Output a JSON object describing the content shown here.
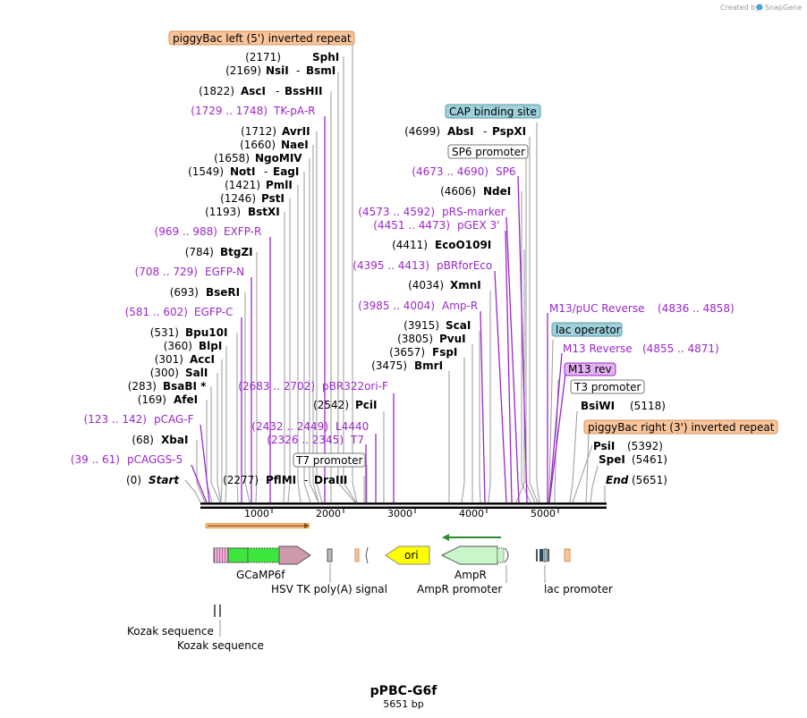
{
  "brand": {
    "created_by": "Created by",
    "app": "SnapGene"
  },
  "plasmid": {
    "name": "pPBC-G6f",
    "length": "5651 bp"
  },
  "colors": {
    "primer": "#9b27c9",
    "orange_box": "#f9c49a",
    "teal_box": "#9fd0dc",
    "violet_box": "#e2b2f2",
    "green_cds": "#3de63d",
    "pink_cds": "#cc9aaa",
    "ampr": "#c9f6c9",
    "ori": "#ffff00",
    "orange_arrow": "#e39b37",
    "green_arrow": "#2d8a2d"
  },
  "top_features": {
    "piggybac_left": "piggyBac left (5') inverted repeat",
    "cap_site": "CAP binding site",
    "sp6_promoter": "SP6 promoter",
    "lac_operator": "lac operator",
    "m13_rev_box": "M13 rev",
    "t3_promoter": "T3 promoter",
    "piggybac_right": "piggyBac right (3') inverted repeat",
    "t7_promoter": "T7 promoter"
  },
  "sites_left": [
    {
      "pos": "(2171)",
      "name": "SphI"
    },
    {
      "pos": "(2169)",
      "name": "NsiI",
      "name2": "BsmI"
    },
    {
      "pos": "(1822)",
      "name": "AscI",
      "name2": "BssHII"
    },
    {
      "pos": "(1712)",
      "name": "AvrII"
    },
    {
      "pos": "(1660)",
      "name": "NaeI"
    },
    {
      "pos": "(1658)",
      "name": "NgoMIV"
    },
    {
      "pos": "(1549)",
      "name": "NotI",
      "name2": "EagI"
    },
    {
      "pos": "(1421)",
      "name": "PmlI"
    },
    {
      "pos": "(1246)",
      "name": "PstI"
    },
    {
      "pos": "(1193)",
      "name": "BstXI"
    },
    {
      "pos": "(784)",
      "name": "BtgZI"
    },
    {
      "pos": "(693)",
      "name": "BseRI"
    },
    {
      "pos": "(531)",
      "name": "Bpu10I"
    },
    {
      "pos": "(360)",
      "name": "BlpI"
    },
    {
      "pos": "(301)",
      "name": "AccI"
    },
    {
      "pos": "(300)",
      "name": "SalI"
    },
    {
      "pos": "(283)",
      "name": "BsaBI *"
    },
    {
      "pos": "(169)",
      "name": "AfeI"
    },
    {
      "pos": "(68)",
      "name": "XbaI"
    },
    {
      "pos": "(0)",
      "name": "Start"
    },
    {
      "pos": "(2277)",
      "name": "PflMI",
      "name2": "DraIII"
    },
    {
      "pos": "(2542)",
      "name": "PciI"
    }
  ],
  "primers_left": [
    {
      "range": "(1729 .. 1748)",
      "name": "TK-pA-R"
    },
    {
      "range": "(969 .. 988)",
      "name": "EXFP-R"
    },
    {
      "range": "(708 .. 729)",
      "name": "EGFP-N"
    },
    {
      "range": "(581 .. 602)",
      "name": "EGFP-C"
    },
    {
      "range": "(123 .. 142)",
      "name": "pCAG-F"
    },
    {
      "range": "(39 .. 61)",
      "name": "pCAGGS-5"
    },
    {
      "range": "(2683 .. 2702)",
      "name": "pBR322ori-F"
    },
    {
      "range": "(2432 .. 2449)",
      "name": "L4440"
    },
    {
      "range": "(2326 .. 2345)",
      "name": "T7"
    }
  ],
  "sites_right": [
    {
      "pos": "(4699)",
      "name": "AbsI",
      "name2": "PspXI"
    },
    {
      "pos": "(4606)",
      "name": "NdeI"
    },
    {
      "pos": "(4411)",
      "name": "EcoO109I"
    },
    {
      "pos": "(4034)",
      "name": "XmnI"
    },
    {
      "pos": "(3915)",
      "name": "ScaI"
    },
    {
      "pos": "(3805)",
      "name": "PvuI"
    },
    {
      "pos": "(3657)",
      "name": "FspI"
    },
    {
      "pos": "(3475)",
      "name": "BmrI"
    },
    {
      "pos": "(5118)",
      "name": "BsiWI"
    },
    {
      "pos": "(5392)",
      "name": "PsiI"
    },
    {
      "pos": "(5461)",
      "name": "SpeI"
    },
    {
      "pos": "(5651)",
      "name": "End"
    }
  ],
  "primers_right": [
    {
      "range": "(4673 .. 4690)",
      "name": "SP6"
    },
    {
      "range": "(4573 .. 4592)",
      "name": "pRS-marker"
    },
    {
      "range": "(4451 .. 4473)",
      "name": "pGEX 3'"
    },
    {
      "range": "(4395 .. 4413)",
      "name": "pBRforEco"
    },
    {
      "range": "(3985 .. 4004)",
      "name": "Amp-R"
    },
    {
      "name": "M13/pUC Reverse",
      "range": "(4836 .. 4858)"
    },
    {
      "name": "M13 Reverse",
      "range": "(4855 .. 4871)"
    }
  ],
  "ruler": {
    "ticks": [
      "1000",
      "2000",
      "3000",
      "4000",
      "5000"
    ]
  },
  "feature_track": {
    "gcamp6f": "GCaMP6f",
    "hsv_tk": "HSV TK poly(A) signal",
    "ori": "ori",
    "ampr": "AmpR",
    "ampr_promoter": "AmpR promoter",
    "lac_promoter": "lac promoter",
    "kozak1": "Kozak sequence",
    "kozak2": "Kozak sequence"
  }
}
